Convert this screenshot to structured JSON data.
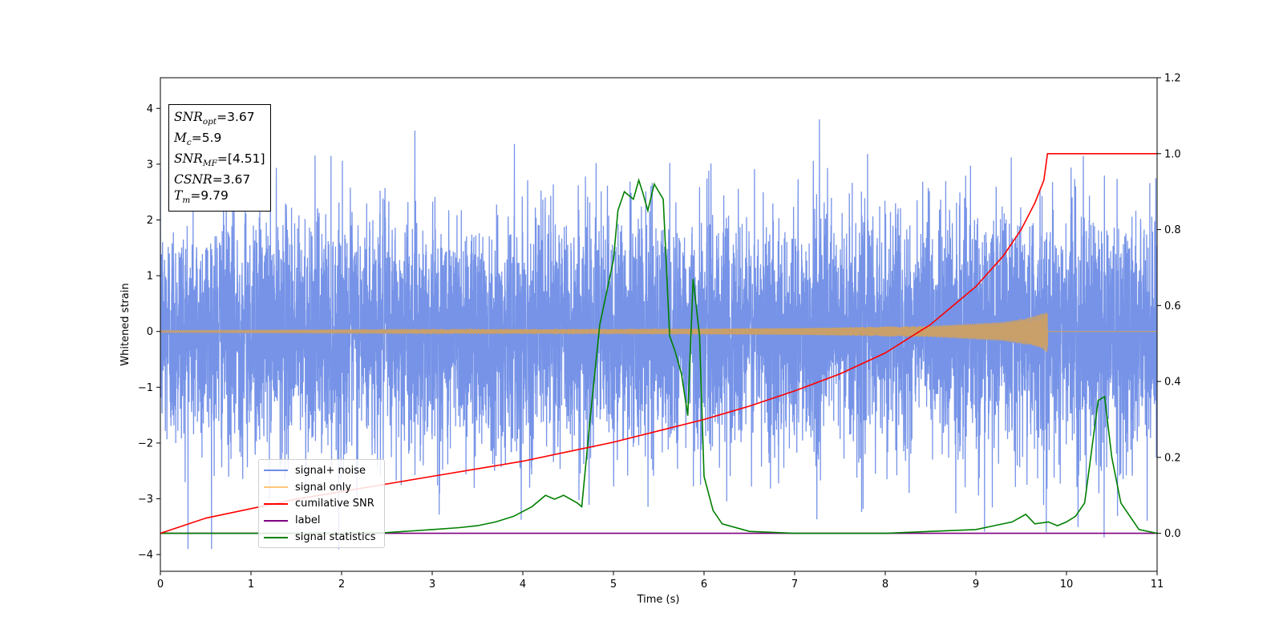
{
  "chart_data": {
    "type": "line",
    "xlabel": "Time (s)",
    "ylabel": "Whitened strain",
    "xlim": [
      0,
      11
    ],
    "ylim": [
      -4.3,
      4.55
    ],
    "y2lim": [
      -0.1,
      1.2
    ],
    "x_ticks": [
      "0",
      "1",
      "2",
      "3",
      "4",
      "5",
      "6",
      "7",
      "8",
      "9",
      "10",
      "11"
    ],
    "y_ticks": [
      "4",
      "3",
      "2",
      "1",
      "0",
      "−1",
      "−2",
      "−3",
      "−4"
    ],
    "y2_ticks": [
      "1.2",
      "1.0",
      "0.8",
      "0.6",
      "0.4",
      "0.2",
      "0.0"
    ],
    "legend_position": "lower-left",
    "colors": {
      "signal_noise": "#6f8de6",
      "signal_only": "#c9a06a",
      "cumulative_snr": "#ff0000",
      "label": "#800080",
      "signal_statistics": "#008000"
    },
    "annotation": {
      "snr_opt": "=3.67",
      "mc": "=5.9",
      "snr_mf": "=[4.51]",
      "csnr": "=3.67",
      "tm": "=9.79"
    },
    "series": [
      {
        "name": "signal+ noise",
        "axis": "left",
        "description_values": "noise band approx mean 0, std 1, spanning about -3.9 to 4.15 over t=0..11"
      },
      {
        "name": "signal only",
        "axis": "left",
        "amplitude_envelope": {
          "x": [
            0,
            5,
            7,
            8.5,
            9.3,
            9.6,
            9.75,
            9.79
          ],
          "y": [
            0.02,
            0.04,
            0.06,
            0.1,
            0.17,
            0.25,
            0.33,
            0.38
          ]
        },
        "end_time": 9.79
      },
      {
        "name": "cumilative SNR",
        "axis": "right",
        "x": [
          0,
          0.5,
          1,
          1.5,
          2,
          2.5,
          3,
          3.5,
          4,
          4.5,
          5,
          5.5,
          6,
          6.5,
          7,
          7.5,
          8,
          8.5,
          9,
          9.3,
          9.5,
          9.65,
          9.75,
          9.79,
          10,
          11
        ],
        "y": [
          0.0,
          0.04,
          0.065,
          0.09,
          0.11,
          0.13,
          0.15,
          0.17,
          0.19,
          0.215,
          0.24,
          0.27,
          0.3,
          0.335,
          0.375,
          0.42,
          0.475,
          0.55,
          0.65,
          0.73,
          0.8,
          0.87,
          0.93,
          1.0,
          1.0,
          1.0
        ]
      },
      {
        "name": "label",
        "axis": "right",
        "x": [
          0,
          11
        ],
        "y": [
          0,
          0
        ]
      },
      {
        "name": "signal statistics",
        "axis": "right",
        "x": [
          0,
          0.5,
          1,
          1.5,
          2,
          2.5,
          2.7,
          3,
          3.3,
          3.5,
          3.7,
          3.9,
          4.1,
          4.25,
          4.35,
          4.45,
          4.6,
          4.65,
          4.75,
          4.85,
          5.0,
          5.05,
          5.12,
          5.22,
          5.28,
          5.32,
          5.38,
          5.45,
          5.55,
          5.62,
          5.68,
          5.75,
          5.82,
          5.88,
          5.95,
          6.0,
          6.1,
          6.2,
          6.5,
          7,
          7.5,
          8,
          8.5,
          9,
          9.2,
          9.4,
          9.55,
          9.65,
          9.8,
          9.9,
          10.0,
          10.1,
          10.2,
          10.25,
          10.35,
          10.42,
          10.5,
          10.6,
          10.8,
          11
        ],
        "y": [
          0.0,
          0.0,
          0.0,
          0.0,
          0.0,
          0.002,
          0.005,
          0.01,
          0.015,
          0.02,
          0.03,
          0.045,
          0.07,
          0.1,
          0.09,
          0.1,
          0.08,
          0.07,
          0.32,
          0.55,
          0.72,
          0.85,
          0.9,
          0.88,
          0.93,
          0.9,
          0.85,
          0.92,
          0.88,
          0.52,
          0.48,
          0.42,
          0.31,
          0.67,
          0.52,
          0.15,
          0.06,
          0.025,
          0.005,
          0.0,
          0.0,
          0.0,
          0.005,
          0.01,
          0.02,
          0.03,
          0.05,
          0.025,
          0.03,
          0.02,
          0.03,
          0.045,
          0.08,
          0.17,
          0.35,
          0.36,
          0.2,
          0.08,
          0.01,
          0.0
        ]
      }
    ]
  }
}
